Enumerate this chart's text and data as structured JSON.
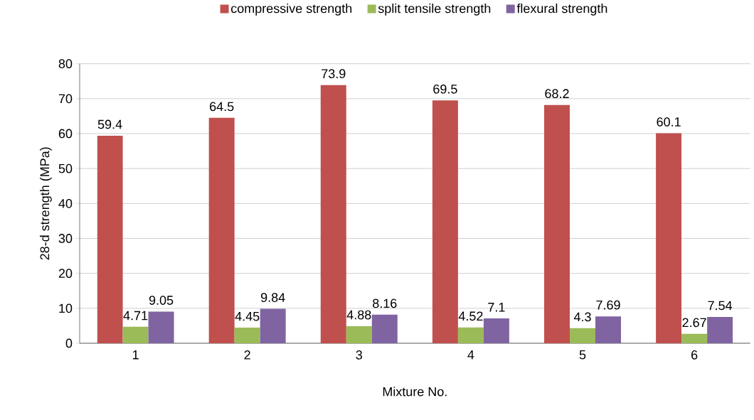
{
  "chart_data": {
    "type": "bar",
    "xlabel": "Mixture No.",
    "ylabel": "28-d strength (MPa)",
    "categories": [
      "1",
      "2",
      "3",
      "4",
      "5",
      "6"
    ],
    "series": [
      {
        "name": "compressive strength",
        "color": "#c0504d",
        "values": [
          59.4,
          64.5,
          73.9,
          69.5,
          68.2,
          60.1
        ]
      },
      {
        "name": "split tensile strength",
        "color": "#9bbb59",
        "values": [
          4.71,
          4.45,
          4.88,
          4.52,
          4.3,
          2.67
        ]
      },
      {
        "name": "flexural strength",
        "color": "#8064a2",
        "values": [
          9.05,
          9.84,
          8.16,
          7.1,
          7.69,
          7.54
        ]
      }
    ],
    "ylim": [
      0,
      80
    ],
    "yticks": [
      0,
      10,
      20,
      30,
      40,
      50,
      60,
      70,
      80
    ],
    "grid": "y",
    "legend": "top",
    "data_labels": true
  }
}
